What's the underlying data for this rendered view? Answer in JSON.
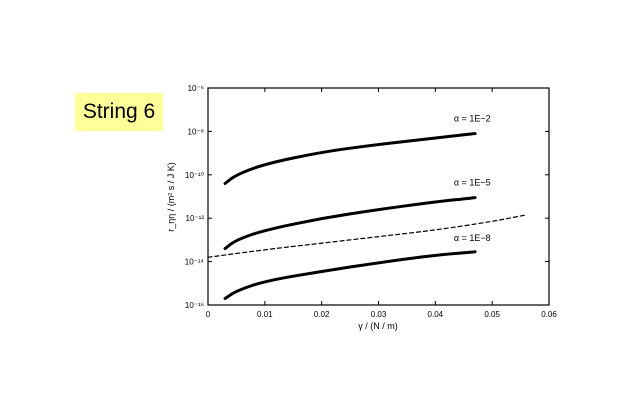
{
  "slide_label": "String 6",
  "chart_data": {
    "type": "line",
    "title": "",
    "xlabel": "γ / (N / m)",
    "ylabel": "r_ηη / (m² s / J K)",
    "xlim": [
      0,
      0.06
    ],
    "ylim_log10": [
      -16,
      -8
    ],
    "yscale": "log",
    "grid": false,
    "x_ticks": [
      "0",
      "0.01",
      "0.02",
      "0.03",
      "0.04",
      "0.05",
      "0.06"
    ],
    "y_ticks": [
      "10⁻¹⁶",
      "10⁻¹⁴",
      "10⁻¹²",
      "10⁻¹⁰",
      "10⁻⁸",
      "10⁻⁶"
    ],
    "y_ticks_exponent": [
      -16,
      -14,
      -12,
      -10,
      -8,
      -6
    ],
    "series": [
      {
        "name": "α = 1E−2",
        "style": "solid",
        "x": [
          0.003,
          0.005,
          0.01,
          0.02,
          0.03,
          0.04,
          0.047
        ],
        "y_log10": [
          -10.4,
          -10.0,
          -9.5,
          -8.95,
          -8.6,
          -8.3,
          -8.1
        ]
      },
      {
        "name": "α = 1E−5",
        "style": "solid",
        "x": [
          0.003,
          0.005,
          0.01,
          0.02,
          0.03,
          0.04,
          0.047
        ],
        "y_log10": [
          -13.4,
          -13.0,
          -12.55,
          -12.0,
          -11.6,
          -11.25,
          -11.05
        ]
      },
      {
        "name": "",
        "style": "dashed",
        "x": [
          0.0,
          0.01,
          0.02,
          0.03,
          0.04,
          0.05,
          0.056
        ],
        "y_log10": [
          -13.8,
          -13.45,
          -13.15,
          -12.85,
          -12.55,
          -12.15,
          -11.85
        ]
      },
      {
        "name": "α = 1E−8",
        "style": "solid",
        "x": [
          0.003,
          0.005,
          0.01,
          0.02,
          0.03,
          0.04,
          0.047
        ],
        "y_log10": [
          -15.7,
          -15.35,
          -14.9,
          -14.45,
          -14.05,
          -13.7,
          -13.55
        ]
      }
    ],
    "annotations": [
      {
        "text": "α = 1E−2",
        "x": 0.0465,
        "y_log10": -7.55
      },
      {
        "text": "α = 1E−5",
        "x": 0.0465,
        "y_log10": -10.5
      },
      {
        "text": "α = 1E−8",
        "x": 0.0465,
        "y_log10": -13.05
      }
    ]
  }
}
